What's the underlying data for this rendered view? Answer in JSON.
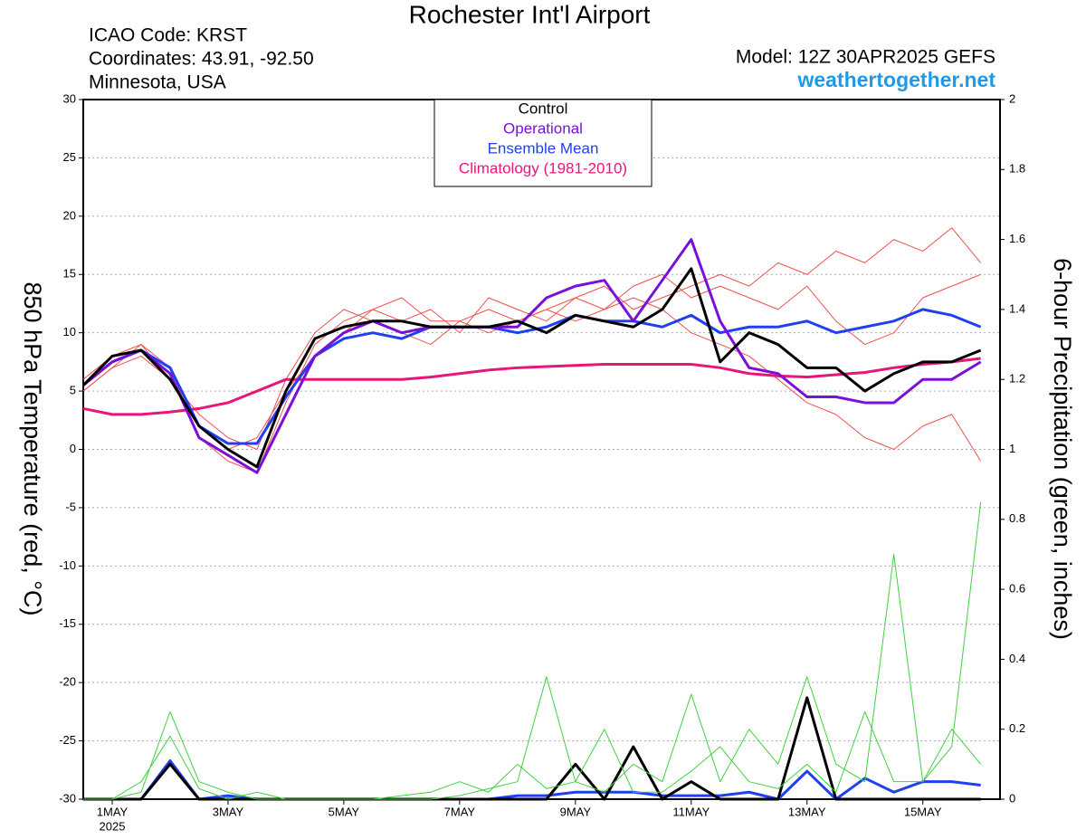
{
  "chart_data": {
    "type": "line",
    "title": "Rochester Int'l Airport",
    "info": [
      "ICAO Code: KRST",
      "Coordinates: 43.91, -92.50",
      "Minnesota, USA"
    ],
    "model": "Model: 12Z 30APR2025 GEFS",
    "site": "weathertogether.net",
    "ylabel": "850 hPa Temperature (red, °C)",
    "y2label": "6-hour Precipitation (green, inches)",
    "x_year": "2025",
    "grid": true,
    "xlim": [
      0,
      380
    ],
    "xticks": [
      {
        "value": 12,
        "label": "1MAY"
      },
      {
        "value": 60,
        "label": "3MAY"
      },
      {
        "value": 108,
        "label": "5MAY"
      },
      {
        "value": 156,
        "label": "7MAY"
      },
      {
        "value": 204,
        "label": "9MAY"
      },
      {
        "value": 252,
        "label": "11MAY"
      },
      {
        "value": 300,
        "label": "13MAY"
      },
      {
        "value": 348,
        "label": "15MAY"
      }
    ],
    "ylim": [
      -30,
      30
    ],
    "yticks": [
      -30,
      -25,
      -20,
      -15,
      -10,
      -5,
      0,
      5,
      10,
      15,
      20,
      25,
      30
    ],
    "y2lim": [
      0,
      2
    ],
    "y2ticks": [
      0,
      0.2,
      0.4,
      0.6,
      0.8,
      1,
      1.2,
      1.4,
      1.6,
      1.8,
      2
    ],
    "x": [
      0,
      12,
      24,
      36,
      48,
      60,
      72,
      84,
      96,
      108,
      120,
      132,
      144,
      156,
      168,
      180,
      192,
      204,
      216,
      228,
      240,
      252,
      264,
      276,
      288,
      300,
      312,
      324,
      336,
      348,
      360,
      372
    ],
    "series": [
      {
        "name": "Control",
        "color": "#000000",
        "width": 3,
        "values": [
          5.5,
          8,
          8.5,
          6,
          2,
          0,
          -1.5,
          5,
          9.5,
          10.5,
          11,
          11,
          10.5,
          10.5,
          10.5,
          11,
          10,
          11.5,
          11,
          10.5,
          12,
          15.5,
          7.5,
          10,
          9,
          7,
          7,
          5,
          6.5,
          7.5,
          7.5,
          8.5
        ]
      },
      {
        "name": "Operational",
        "color": "#7a0fd8",
        "width": 3,
        "values": [
          5.5,
          7.5,
          8.5,
          6.5,
          1,
          -0.5,
          -2,
          3,
          8,
          10,
          11,
          10,
          10.5,
          10.5,
          10.5,
          10.5,
          13,
          14,
          14.5,
          11,
          14.5,
          18,
          11,
          7,
          6.5,
          4.5,
          4.5,
          4,
          4,
          6,
          6,
          7.5
        ]
      },
      {
        "name": "Ensemble Mean",
        "color": "#2040f0",
        "width": 3,
        "values": [
          5.5,
          7.5,
          8.5,
          7,
          2,
          0.5,
          0.5,
          4.5,
          8,
          9.5,
          10,
          9.5,
          10.5,
          10.5,
          10.5,
          10,
          10.5,
          11.5,
          11,
          11,
          10.5,
          11.5,
          10,
          10.5,
          10.5,
          11,
          10,
          10.5,
          11,
          12,
          11.5,
          10.5
        ]
      },
      {
        "name": "Climatology (1981-2010)",
        "color": "#e8157a",
        "width": 3,
        "values": [
          3.5,
          3,
          3,
          3.2,
          3.5,
          4,
          5,
          6,
          6,
          6,
          6,
          6,
          6.2,
          6.5,
          6.8,
          7,
          7.1,
          7.2,
          7.3,
          7.3,
          7.3,
          7.3,
          7,
          6.5,
          6.3,
          6.2,
          6.4,
          6.6,
          7,
          7.3,
          7.5,
          7.8
        ]
      },
      {
        "color": "#f05050",
        "width": 1,
        "values": [
          5,
          7,
          9,
          7,
          1,
          -1,
          -2,
          4,
          9,
          11,
          12,
          13,
          11,
          11,
          10,
          11,
          12,
          13,
          12,
          14,
          15,
          13,
          14,
          13,
          12,
          14,
          11,
          9,
          10,
          13,
          14,
          15
        ]
      },
      {
        "color": "#f05050",
        "width": 1,
        "values": [
          6,
          8,
          9,
          6,
          3,
          1,
          0,
          6,
          10,
          12,
          11,
          10,
          9,
          11,
          12,
          11,
          12,
          11,
          12,
          13,
          12,
          10,
          9,
          8,
          6,
          4,
          3,
          1,
          0,
          2,
          3,
          -1
        ]
      },
      {
        "color": "#f05050",
        "width": 1,
        "values": [
          5,
          7,
          8,
          6,
          2,
          0,
          1,
          5,
          8,
          10,
          12,
          11,
          12,
          10,
          13,
          12,
          11,
          13,
          14,
          12,
          13,
          14,
          15,
          14,
          16,
          15,
          17,
          16,
          18,
          17,
          19,
          16
        ]
      },
      {
        "color": "#40d040",
        "width": 1,
        "axis": "y2",
        "values": [
          0,
          0,
          0.02,
          0.25,
          0.05,
          0.02,
          0,
          0,
          0,
          0,
          0,
          0,
          0,
          0.01,
          0.03,
          0.05,
          0.35,
          0.05,
          0.02,
          0.1,
          0.05,
          0.3,
          0.05,
          0.2,
          0.1,
          0.35,
          0.1,
          0.05,
          0.7,
          0.05,
          0.15,
          0.85
        ]
      },
      {
        "color": "#40d040",
        "width": 1,
        "axis": "y2",
        "values": [
          0,
          0,
          0.05,
          0.18,
          0.03,
          0,
          0.02,
          0,
          0,
          0,
          0,
          0.01,
          0.02,
          0.05,
          0.02,
          0.1,
          0.03,
          0.05,
          0.2,
          0.02,
          0.02,
          0.08,
          0.15,
          0.05,
          0.03,
          0.1,
          0.02,
          0.25,
          0.05,
          0.05,
          0.2,
          0.1
        ]
      },
      {
        "color": "#000000",
        "width": 3,
        "axis": "y2",
        "values": [
          0,
          0,
          0,
          0.1,
          0,
          0,
          0,
          0,
          0,
          0,
          0,
          0,
          0,
          0,
          0,
          0,
          0,
          0.1,
          0,
          0.15,
          0,
          0.05,
          0,
          0,
          0,
          0.29,
          0,
          0,
          0,
          0,
          0,
          0
        ]
      },
      {
        "color": "#2040f0",
        "width": 3,
        "axis": "y2",
        "values": [
          0,
          0,
          0,
          0.11,
          0,
          0.01,
          0,
          0,
          0,
          0,
          0,
          0,
          0,
          0,
          0,
          0.01,
          0.01,
          0.02,
          0.02,
          0.02,
          0.01,
          0.01,
          0.01,
          0.02,
          0,
          0.08,
          0,
          0.06,
          0.02,
          0.05,
          0.05,
          0.04
        ]
      }
    ]
  }
}
